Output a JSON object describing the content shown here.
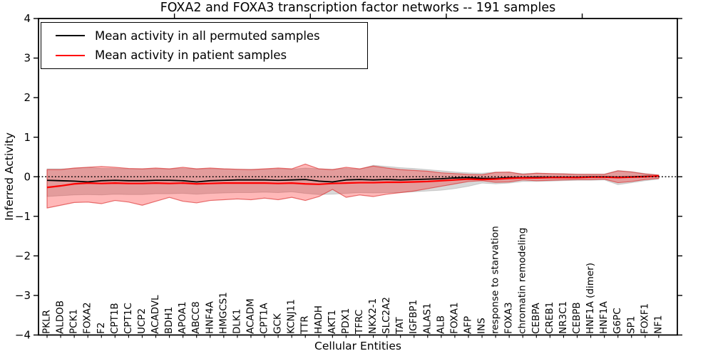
{
  "title": "FOXA2 and FOXA3 transcription factor networks -- 191 samples",
  "axes": {
    "ylabel": "Inferred Activity",
    "xlabel": "Cellular Entities",
    "ylim": [
      -4,
      4
    ],
    "yticks": [
      -4,
      -3,
      -2,
      -1,
      0,
      1,
      2,
      3,
      4
    ],
    "xlim": [
      0,
      47
    ],
    "xticks": [
      10,
      20,
      30,
      40
    ],
    "grid": false
  },
  "legend": {
    "position": "upper left",
    "entries": [
      {
        "label": "Mean activity in all permuted samples",
        "color": "#000000"
      },
      {
        "label": "Mean activity in patient samples",
        "color": "#ff0000"
      }
    ]
  },
  "colors": {
    "permuted_line": "#000000",
    "patient_line": "#ff0000",
    "patient_band": "#f49c9c",
    "permuted_band": "#d6d6d6",
    "reference_line": "#000000"
  },
  "chart_data": {
    "type": "line",
    "title": "FOXA2 and FOXA3 transcription factor networks -- 191 samples",
    "xlabel": "Cellular Entities",
    "ylabel": "Inferred Activity",
    "ylim": [
      -4,
      4
    ],
    "legend_position": "upper left",
    "reference_line_y": 0.0,
    "categories": [
      "PKLR",
      "ALDOB",
      "PCK1",
      "FOXA2",
      "F2",
      "CPT1B",
      "CPT1C",
      "UCP2",
      "ACADVL",
      "BDH1",
      "APOA1",
      "ABCC8",
      "HNF4A",
      "HMGCS1",
      "DLK1",
      "ACADM",
      "CPT1A",
      "GCK",
      "KCNJ11",
      "TTR",
      "HADH",
      "AKT1",
      "PDX1",
      "TFRC",
      "NKX2-1",
      "SLC2A2",
      "TAT",
      "IGFBP1",
      "ALAS1",
      "ALB",
      "FOXA1",
      "AFP",
      "INS",
      "response to starvation",
      "FOXA3",
      "chromatin remodeling",
      "CEBPA",
      "CREB1",
      "NR3C1",
      "CEBPB",
      "HNF1A (dimer)",
      "HNF1A",
      "G6PC",
      "SP1",
      "FOXF1",
      "NF1"
    ],
    "series": [
      {
        "name": "Mean activity in all permuted samples",
        "values": [
          -0.09,
          -0.1,
          -0.11,
          -0.13,
          -0.1,
          -0.09,
          -0.1,
          -0.1,
          -0.09,
          -0.09,
          -0.1,
          -0.13,
          -0.1,
          -0.09,
          -0.08,
          -0.08,
          -0.08,
          -0.09,
          -0.08,
          -0.07,
          -0.11,
          -0.13,
          -0.08,
          -0.07,
          -0.08,
          -0.07,
          -0.08,
          -0.07,
          -0.06,
          -0.05,
          -0.03,
          -0.02,
          -0.04,
          -0.04,
          -0.02,
          -0.02,
          -0.01,
          -0.01,
          -0.01,
          -0.01,
          0.0,
          0.0,
          -0.01,
          0.0,
          0.01,
          0.02
        ],
        "band_upper": [
          0.2,
          0.2,
          0.21,
          0.24,
          0.21,
          0.21,
          0.2,
          0.2,
          0.2,
          0.2,
          0.21,
          0.2,
          0.2,
          0.2,
          0.19,
          0.19,
          0.19,
          0.2,
          0.19,
          0.22,
          0.2,
          0.19,
          0.21,
          0.19,
          0.29,
          0.26,
          0.23,
          0.21,
          0.18,
          0.15,
          0.12,
          0.1,
          0.09,
          0.12,
          0.11,
          0.08,
          0.09,
          0.08,
          0.08,
          0.07,
          0.07,
          0.07,
          0.16,
          0.13,
          0.08,
          0.05
        ],
        "band_lower": [
          -0.5,
          -0.48,
          -0.46,
          -0.45,
          -0.46,
          -0.44,
          -0.45,
          -0.45,
          -0.43,
          -0.43,
          -0.42,
          -0.44,
          -0.42,
          -0.41,
          -0.4,
          -0.4,
          -0.39,
          -0.4,
          -0.38,
          -0.42,
          -0.45,
          -0.44,
          -0.42,
          -0.4,
          -0.41,
          -0.4,
          -0.4,
          -0.38,
          -0.36,
          -0.34,
          -0.3,
          -0.24,
          -0.16,
          -0.18,
          -0.16,
          -0.12,
          -0.12,
          -0.11,
          -0.1,
          -0.09,
          -0.09,
          -0.08,
          -0.2,
          -0.15,
          -0.1,
          -0.06
        ]
      },
      {
        "name": "Mean activity in patient samples",
        "values": [
          -0.27,
          -0.23,
          -0.18,
          -0.16,
          -0.17,
          -0.16,
          -0.17,
          -0.17,
          -0.16,
          -0.17,
          -0.16,
          -0.18,
          -0.17,
          -0.16,
          -0.16,
          -0.16,
          -0.16,
          -0.17,
          -0.16,
          -0.18,
          -0.19,
          -0.17,
          -0.16,
          -0.15,
          -0.15,
          -0.14,
          -0.14,
          -0.13,
          -0.12,
          -0.1,
          -0.08,
          -0.06,
          -0.07,
          -0.06,
          -0.04,
          -0.03,
          -0.03,
          -0.02,
          -0.02,
          -0.02,
          -0.01,
          -0.01,
          -0.02,
          -0.01,
          0.0,
          0.02
        ],
        "band_upper": [
          0.18,
          0.18,
          0.22,
          0.24,
          0.26,
          0.24,
          0.21,
          0.2,
          0.22,
          0.2,
          0.24,
          0.2,
          0.22,
          0.2,
          0.19,
          0.18,
          0.2,
          0.22,
          0.2,
          0.32,
          0.2,
          0.18,
          0.24,
          0.2,
          0.27,
          0.22,
          0.18,
          0.16,
          0.14,
          0.1,
          0.08,
          0.06,
          0.05,
          0.11,
          0.12,
          0.06,
          0.09,
          0.08,
          0.07,
          0.06,
          0.06,
          0.06,
          0.15,
          0.12,
          0.07,
          0.04
        ],
        "band_lower": [
          -0.79,
          -0.72,
          -0.65,
          -0.64,
          -0.68,
          -0.6,
          -0.64,
          -0.72,
          -0.62,
          -0.52,
          -0.62,
          -0.66,
          -0.6,
          -0.58,
          -0.56,
          -0.58,
          -0.54,
          -0.58,
          -0.52,
          -0.6,
          -0.5,
          -0.32,
          -0.52,
          -0.46,
          -0.5,
          -0.44,
          -0.4,
          -0.36,
          -0.3,
          -0.24,
          -0.18,
          -0.12,
          -0.1,
          -0.14,
          -0.13,
          -0.08,
          -0.1,
          -0.09,
          -0.08,
          -0.07,
          -0.07,
          -0.06,
          -0.15,
          -0.12,
          -0.07,
          -0.04
        ]
      }
    ]
  }
}
